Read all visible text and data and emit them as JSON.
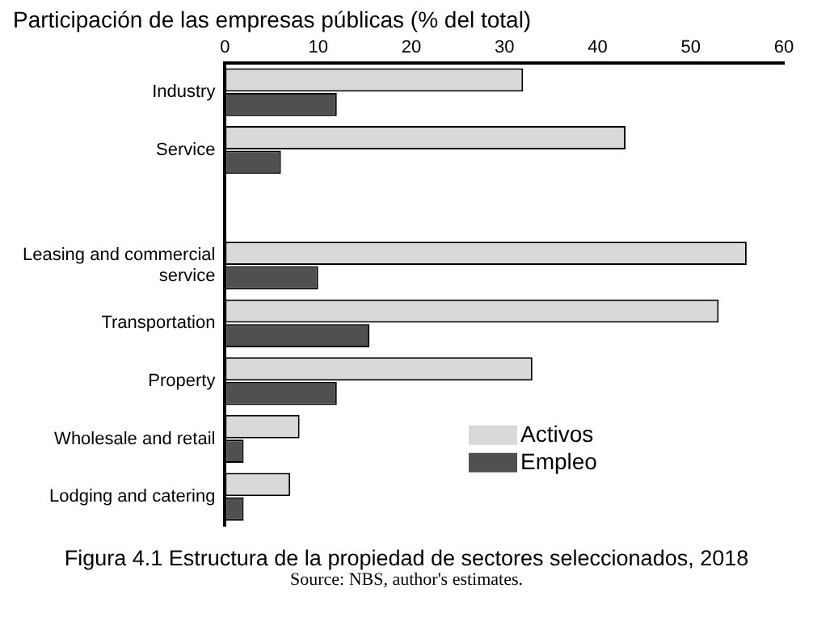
{
  "chart_data": {
    "type": "bar",
    "orientation": "horizontal",
    "title": "Participación de las empresas públicas (% del total)",
    "categories": [
      "Industry",
      "Service",
      null,
      "Leasing and commercial service",
      "Transportation",
      "Property",
      "Wholesale and retail",
      "Lodging and catering"
    ],
    "series": [
      {
        "name": "Activos",
        "color": "#d9d9d9",
        "values": [
          32,
          43,
          null,
          56,
          53,
          33,
          8,
          7
        ]
      },
      {
        "name": "Empleo",
        "color": "#505050",
        "values": [
          12,
          6,
          null,
          10,
          15.5,
          12,
          2,
          2
        ]
      }
    ],
    "xlim": [
      0,
      60
    ],
    "xticks": [
      0,
      10,
      20,
      30,
      40,
      50,
      60
    ],
    "grid": false,
    "legend": "bottom right",
    "annotations": [
      "Figura 4.1 Estructura de la propiedad de sectores seleccionados, 2018",
      "Source: NBS, author's estimates."
    ]
  }
}
